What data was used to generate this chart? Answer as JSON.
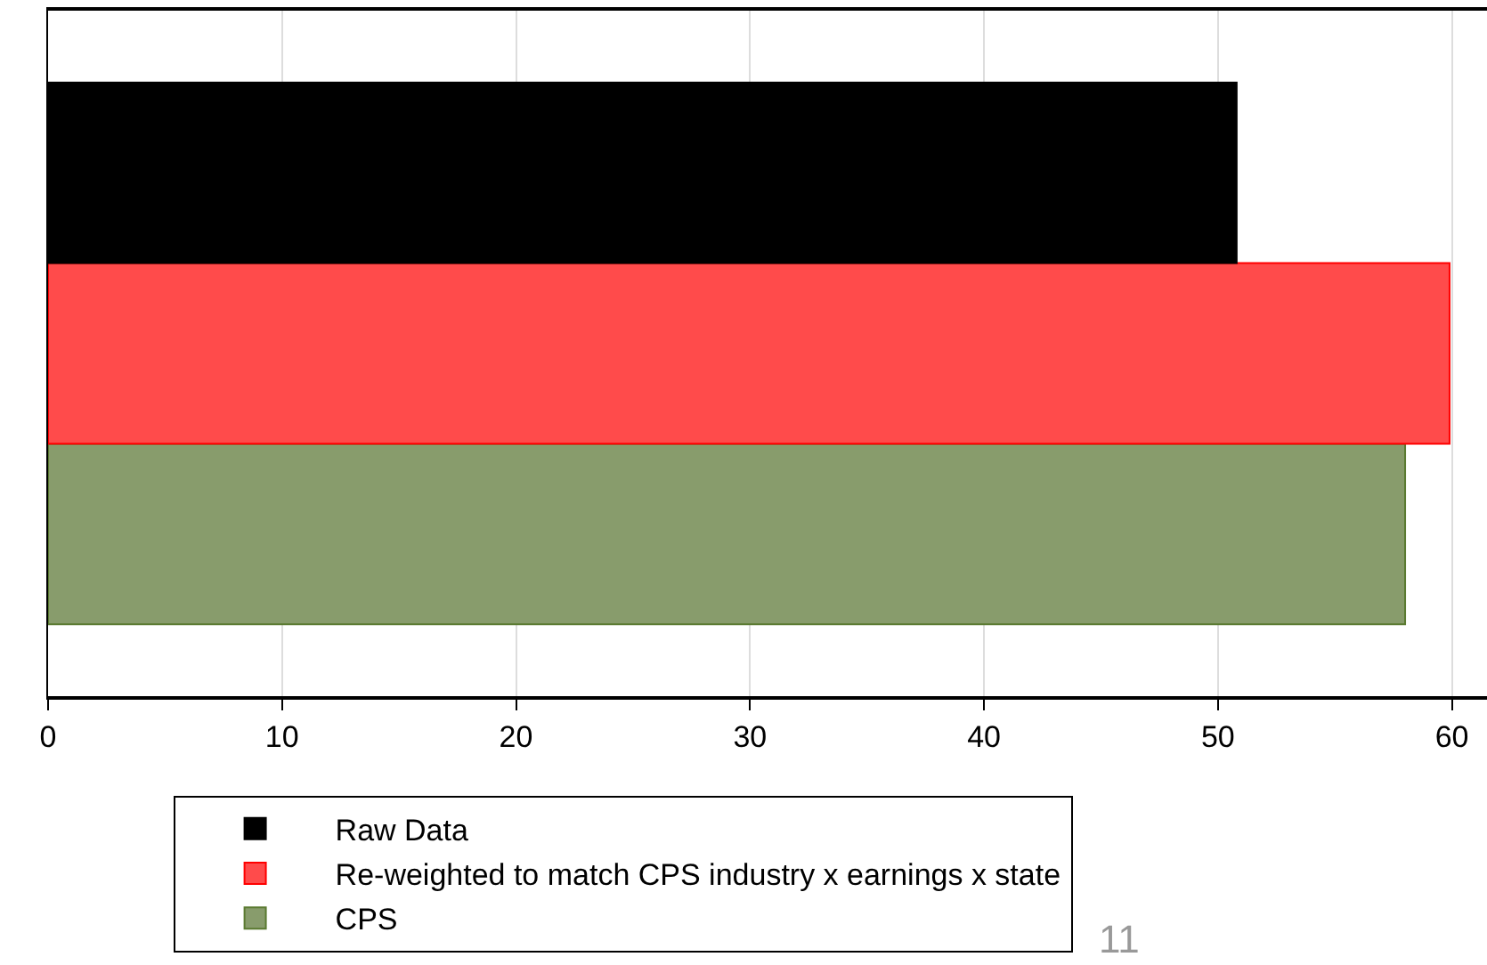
{
  "chart_data": {
    "type": "bar",
    "orientation": "horizontal",
    "categories": [
      null
    ],
    "series": [
      {
        "name": "Raw Data",
        "color": "#000000",
        "values": [
          50.8
        ]
      },
      {
        "name": "Re-weighted to match CPS industry x earnings x state",
        "color": "#ff4b4b",
        "values": [
          59.9
        ]
      },
      {
        "name": "CPS",
        "color": "#889c6c",
        "values": [
          58.0
        ]
      }
    ],
    "xlim": [
      0,
      61.5
    ],
    "xticks": [
      0,
      10,
      20,
      30,
      40,
      50,
      60
    ],
    "grid": "x",
    "legend": "bottom",
    "tick_labels": "x",
    "annotations": [
      "11"
    ]
  }
}
